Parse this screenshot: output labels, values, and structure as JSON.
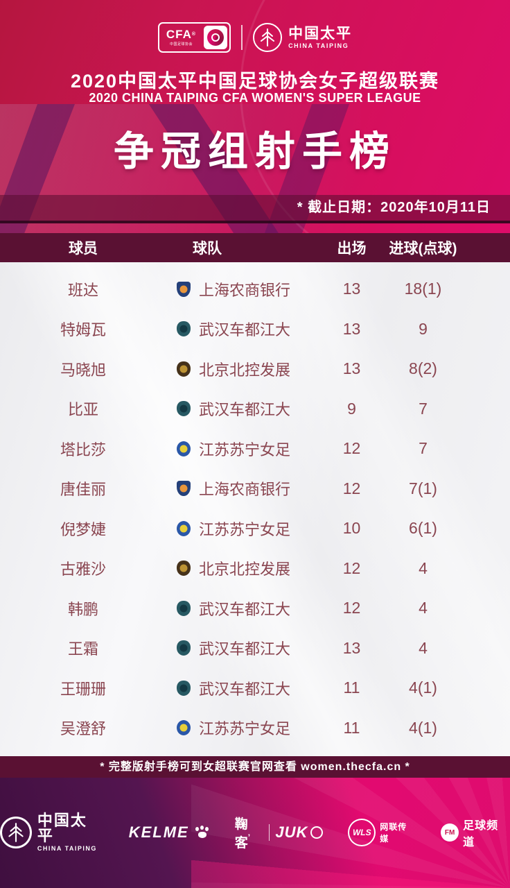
{
  "colors": {
    "bg_magenta": "#d90e60",
    "bg_crimson": "#b5163f",
    "bg_purple": "#3f0f3f",
    "bar_maroon": "#5a1133",
    "date_band": "#580c30",
    "table_bg": "#f2f2f5",
    "row_text": "#8a4550",
    "white": "#ffffff"
  },
  "header": {
    "cfa_box": {
      "acronym": "CFA",
      "reg": "®",
      "sub": "中国足球协会"
    },
    "taiping": {
      "cn": "中国太平",
      "en": "CHINA TAIPING"
    },
    "title_cn": "2020中国太平中国足球协会女子超级联赛",
    "title_en": "2020 CHINA TAIPING CFA WOMEN'S SUPER LEAGUE",
    "main_title": "争冠组射手榜",
    "date_note": "* 截止日期：2020年10月11日"
  },
  "table": {
    "columns": [
      "球员",
      "球队",
      "出场",
      "进球(点球)"
    ],
    "rows": [
      {
        "player": "班达",
        "team": "上海农商银行",
        "badge": "shanghai",
        "apps": "13",
        "goals": "18(1)"
      },
      {
        "player": "特姆瓦",
        "team": "武汉车都江大",
        "badge": "wuhan",
        "apps": "13",
        "goals": "9"
      },
      {
        "player": "马晓旭",
        "team": "北京北控发展",
        "badge": "beijing",
        "apps": "13",
        "goals": "8(2)"
      },
      {
        "player": "比亚",
        "team": "武汉车都江大",
        "badge": "wuhan",
        "apps": "9",
        "goals": "7"
      },
      {
        "player": "塔比莎",
        "team": "江苏苏宁女足",
        "badge": "jiangsu",
        "apps": "12",
        "goals": "7"
      },
      {
        "player": "唐佳丽",
        "team": "上海农商银行",
        "badge": "shanghai",
        "apps": "12",
        "goals": "7(1)"
      },
      {
        "player": "倪梦婕",
        "team": "江苏苏宁女足",
        "badge": "jiangsu",
        "apps": "10",
        "goals": "6(1)"
      },
      {
        "player": "古雅沙",
        "team": "北京北控发展",
        "badge": "beijing",
        "apps": "12",
        "goals": "4"
      },
      {
        "player": "韩鹏",
        "team": "武汉车都江大",
        "badge": "wuhan",
        "apps": "12",
        "goals": "4"
      },
      {
        "player": "王霜",
        "team": "武汉车都江大",
        "badge": "wuhan",
        "apps": "13",
        "goals": "4"
      },
      {
        "player": "王珊珊",
        "team": "武汉车都江大",
        "badge": "wuhan",
        "apps": "11",
        "goals": "4(1)"
      },
      {
        "player": "吴澄舒",
        "team": "江苏苏宁女足",
        "badge": "jiangsu",
        "apps": "11",
        "goals": "4(1)"
      }
    ]
  },
  "badges": {
    "shanghai": {
      "shape": "shield",
      "outer": "#24407a",
      "inner": "#e8963c"
    },
    "wuhan": {
      "shape": "crest",
      "outer": "#275963",
      "inner": "#133843"
    },
    "beijing": {
      "shape": "crest",
      "outer": "#46321a",
      "inner": "#bd9334"
    },
    "jiangsu": {
      "shape": "circle",
      "outer": "#2a57a8",
      "inner": "#e7cf3a"
    }
  },
  "footer": {
    "note": "* 完整版射手榜可到女超联赛官网查看 women.thecfa.cn *"
  },
  "sponsors": {
    "taiping": {
      "cn": "中国太平",
      "en": "CHINA TAIPING"
    },
    "kelme": {
      "label": "KELME"
    },
    "juke": {
      "cn": "鞠客",
      "apos": "’",
      "en": "JUK"
    },
    "wls": {
      "acronym": "WLS",
      "label": "网联传媒"
    },
    "channel": {
      "acronym": "FM",
      "label": "足球频道"
    }
  }
}
